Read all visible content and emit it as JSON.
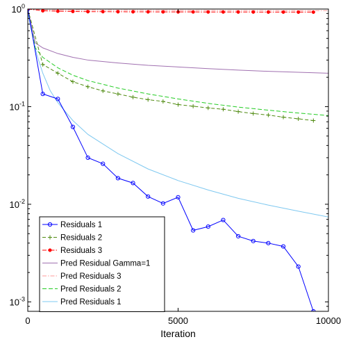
{
  "chart_data": {
    "type": "line",
    "title": "",
    "xlabel": "Iteration",
    "ylabel": "",
    "xlim": [
      0,
      10000
    ],
    "ylim": [
      0.0008,
      1
    ],
    "yscale": "log",
    "xticks": [
      0,
      5000,
      10000
    ],
    "xtick_labels": [
      "0",
      "5000",
      "10000"
    ],
    "yticks": [
      0.001,
      0.01,
      0.1,
      1
    ],
    "ytick_labels": [
      {
        "base": "10",
        "exp": "-3"
      },
      {
        "base": "10",
        "exp": "-2"
      },
      {
        "base": "10",
        "exp": "-1"
      },
      {
        "base": "10",
        "exp": "0"
      }
    ],
    "grid": false,
    "legend_position": "bottom-left",
    "series": [
      {
        "name": "Residuals 1",
        "color": "#0000ff",
        "dash": "solid",
        "marker": "circle",
        "x": [
          0,
          500,
          1000,
          1500,
          2000,
          2500,
          3000,
          3500,
          4000,
          4500,
          5000,
          5500,
          6000,
          6500,
          7000,
          7500,
          8000,
          8500,
          9000,
          9500
        ],
        "y": [
          1.0,
          0.135,
          0.12,
          0.062,
          0.03,
          0.026,
          0.0185,
          0.0165,
          0.012,
          0.0102,
          0.0118,
          0.0054,
          0.0059,
          0.0069,
          0.0047,
          0.0042,
          0.004,
          0.0037,
          0.0023,
          0.0008
        ]
      },
      {
        "name": "Residuals 2",
        "color": "#4f8a10",
        "dash": "5,3",
        "marker": "plus",
        "x": [
          0,
          500,
          1000,
          1500,
          2000,
          2500,
          3000,
          3500,
          4000,
          4500,
          5000,
          5500,
          6000,
          6500,
          7000,
          7500,
          8000,
          8500,
          9000,
          9500
        ],
        "y": [
          1.0,
          0.27,
          0.22,
          0.18,
          0.16,
          0.145,
          0.135,
          0.125,
          0.118,
          0.113,
          0.105,
          0.101,
          0.097,
          0.094,
          0.089,
          0.085,
          0.082,
          0.078,
          0.075,
          0.072
        ]
      },
      {
        "name": "Residuals 3",
        "color": "#ff0000",
        "dash": "6,2,1.5,2",
        "marker": "dot",
        "x": [
          0,
          500,
          1000,
          1500,
          2000,
          2500,
          3000,
          3500,
          4000,
          4500,
          5000,
          5500,
          6000,
          6500,
          7000,
          7500,
          8000,
          8500,
          9000,
          9500
        ],
        "y": [
          1.0,
          0.96,
          0.95,
          0.945,
          0.94,
          0.94,
          0.938,
          0.937,
          0.936,
          0.935,
          0.934,
          0.934,
          0.933,
          0.933,
          0.932,
          0.932,
          0.931,
          0.931,
          0.93,
          0.93
        ]
      },
      {
        "name": "Pred Residual Gamma=1",
        "color": "#a070b0",
        "dash": "solid",
        "marker": "none",
        "x": [
          0,
          250,
          500,
          1000,
          1500,
          2000,
          3000,
          4000,
          5000,
          6000,
          7000,
          8000,
          9000,
          10000
        ],
        "y": [
          1.0,
          0.45,
          0.4,
          0.35,
          0.32,
          0.3,
          0.28,
          0.265,
          0.255,
          0.245,
          0.237,
          0.23,
          0.225,
          0.22
        ]
      },
      {
        "name": "Pred Residuals 3",
        "color": "#ff9a9a",
        "dash": "6,2,1.5,2",
        "marker": "none",
        "x": [
          0,
          200,
          500,
          1000,
          2000,
          4000,
          6000,
          8000,
          10000
        ],
        "y": [
          1.0,
          0.99,
          0.985,
          0.98,
          0.975,
          0.97,
          0.967,
          0.965,
          0.963
        ]
      },
      {
        "name": "Pred Residuals 2",
        "color": "#22cc22",
        "dash": "6,3",
        "marker": "none",
        "x": [
          0,
          250,
          500,
          1000,
          1500,
          2000,
          3000,
          4000,
          5000,
          6000,
          7000,
          8000,
          9000,
          10000
        ],
        "y": [
          1.0,
          0.4,
          0.32,
          0.25,
          0.21,
          0.185,
          0.155,
          0.135,
          0.12,
          0.108,
          0.099,
          0.092,
          0.086,
          0.081
        ]
      },
      {
        "name": "Pred Residuals 1",
        "color": "#7ec8f0",
        "dash": "solid",
        "marker": "none",
        "x": [
          0,
          150,
          300,
          500,
          750,
          1000,
          1500,
          2000,
          3000,
          4000,
          5000,
          6000,
          7000,
          8000,
          9000,
          10000
        ],
        "y": [
          0.9,
          0.55,
          0.34,
          0.22,
          0.145,
          0.11,
          0.072,
          0.052,
          0.033,
          0.023,
          0.0175,
          0.014,
          0.0115,
          0.0098,
          0.0085,
          0.0074
        ]
      }
    ]
  }
}
